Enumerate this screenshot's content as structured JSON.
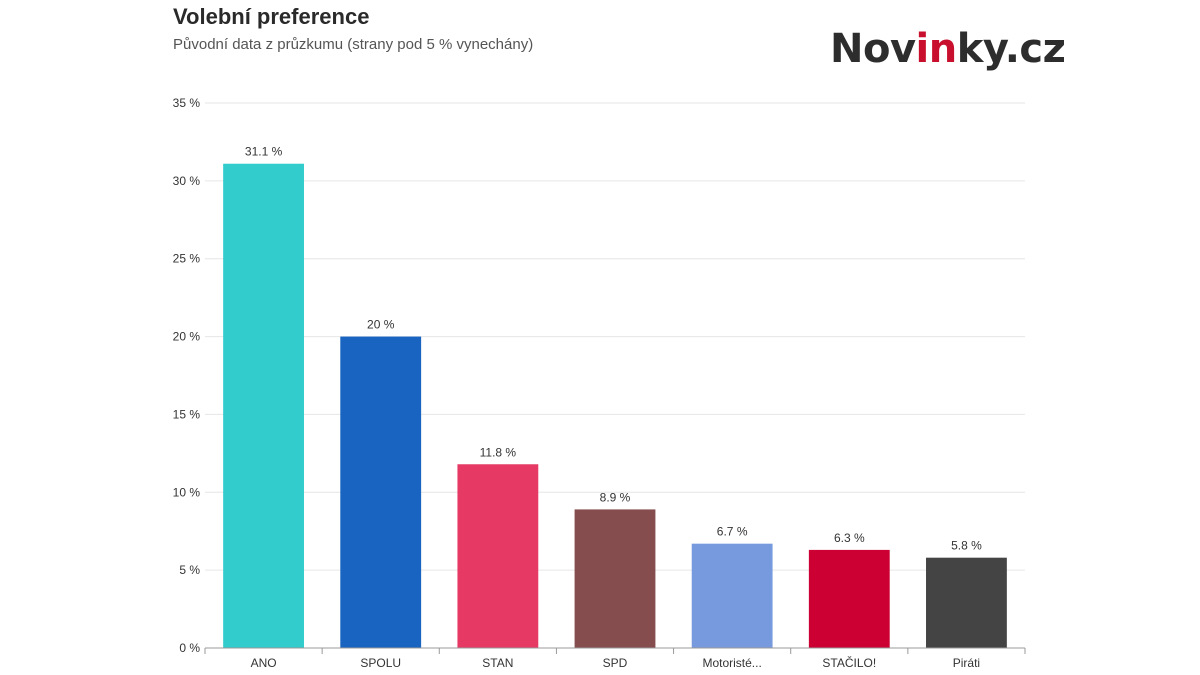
{
  "header": {
    "title": "Volební preference",
    "subtitle": "Původní data z průzkumu (strany pod 5 % vynechány)"
  },
  "logo": {
    "part1": "Nov",
    "accent": "in",
    "part2": "ky.cz",
    "accent_color": "#c8102e"
  },
  "chart_data": {
    "type": "bar",
    "title": "Volební preference",
    "subtitle": "Původní data z průzkumu (strany pod 5 % vynechány)",
    "categories": [
      "ANO",
      "SPOLU",
      "STAN",
      "SPD",
      "Motoristé...",
      "STAČILO!",
      "Piráti"
    ],
    "values": [
      31.1,
      20,
      11.8,
      8.9,
      6.7,
      6.3,
      5.8
    ],
    "value_labels": [
      "31.1 %",
      "20 %",
      "11.8 %",
      "8.9 %",
      "6.7 %",
      "6.3 %",
      "5.8 %"
    ],
    "colors": [
      "#33cccc",
      "#1864c0",
      "#e63964",
      "#854d4d",
      "#7799dd",
      "#cc0033",
      "#444444"
    ],
    "ylim": [
      0,
      35
    ],
    "yticks": [
      0,
      5,
      10,
      15,
      20,
      25,
      30,
      35
    ],
    "ytick_labels": [
      "0 %",
      "5 %",
      "10 %",
      "15 %",
      "20 %",
      "25 %",
      "30 %",
      "35 %"
    ],
    "xlabel": "",
    "ylabel": "",
    "grid": true,
    "legend": "none"
  }
}
